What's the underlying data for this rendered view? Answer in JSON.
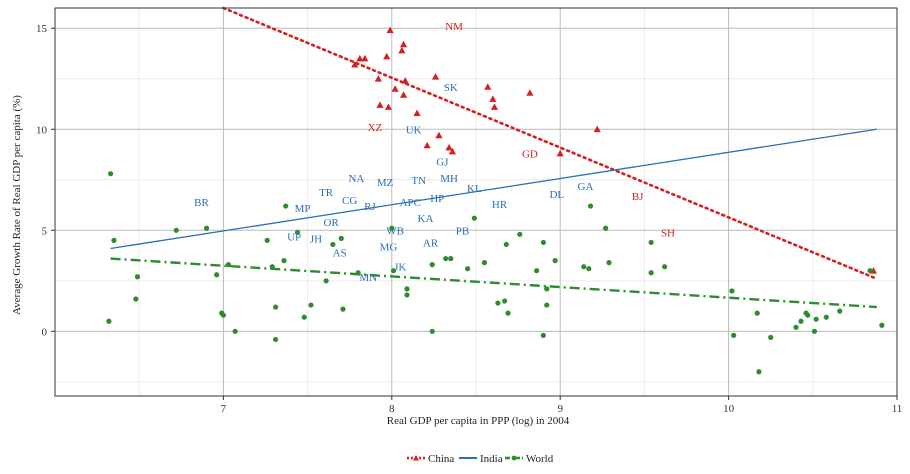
{
  "chart_data": {
    "type": "scatter",
    "xlabel": "Real GDP per capita in PPP (log) in 2004",
    "ylabel": "Average Growth Rate of Real GDP per capita (%)",
    "xlim": [
      6.0,
      11.0
    ],
    "ylim": [
      -3.2,
      16.0
    ],
    "x_ticks": [
      7,
      8,
      9,
      10,
      11
    ],
    "y_ticks": [
      0,
      5,
      10,
      15
    ],
    "grid": true,
    "legend_position": "bottom",
    "series": [
      {
        "name": "China",
        "color": "#d62020",
        "marker": "triangle",
        "points": [
          [
            7.78,
            13.2
          ],
          [
            7.81,
            13.5
          ],
          [
            7.84,
            13.5
          ],
          [
            7.92,
            12.5
          ],
          [
            7.97,
            13.6
          ],
          [
            7.99,
            14.9
          ],
          [
            8.06,
            13.9
          ],
          [
            8.07,
            14.2
          ],
          [
            8.08,
            12.4
          ],
          [
            8.07,
            11.7
          ],
          [
            8.02,
            12.0
          ],
          [
            8.26,
            12.6
          ],
          [
            8.15,
            10.8
          ],
          [
            7.93,
            11.2
          ],
          [
            7.98,
            11.1
          ],
          [
            8.21,
            9.2
          ],
          [
            8.28,
            9.7
          ],
          [
            8.34,
            9.1
          ],
          [
            8.36,
            8.9
          ],
          [
            8.57,
            12.1
          ],
          [
            8.6,
            11.5
          ],
          [
            8.61,
            11.1
          ],
          [
            8.82,
            11.8
          ],
          [
            9.0,
            8.8
          ],
          [
            9.22,
            10.0
          ],
          [
            10.86,
            3.0
          ]
        ],
        "labels": [
          {
            "text": "NM",
            "x": 8.37,
            "y": 15.1
          },
          {
            "text": "XZ",
            "x": 7.9,
            "y": 10.1
          },
          {
            "text": "GD",
            "x": 8.82,
            "y": 8.8
          },
          {
            "text": "BJ",
            "x": 9.46,
            "y": 6.7
          },
          {
            "text": "SH",
            "x": 9.64,
            "y": 4.9
          }
        ]
      },
      {
        "name": "India",
        "color": "#2a6fb3",
        "marker": "none",
        "labels": [
          {
            "text": "SK",
            "x": 8.35,
            "y": 12.1
          },
          {
            "text": "UK",
            "x": 8.13,
            "y": 10.0
          },
          {
            "text": "GJ",
            "x": 8.3,
            "y": 8.4
          },
          {
            "text": "NA",
            "x": 7.79,
            "y": 7.6
          },
          {
            "text": "MZ",
            "x": 7.96,
            "y": 7.4
          },
          {
            "text": "TN",
            "x": 8.16,
            "y": 7.5
          },
          {
            "text": "MH",
            "x": 8.34,
            "y": 7.6
          },
          {
            "text": "KL",
            "x": 8.49,
            "y": 7.1
          },
          {
            "text": "GA",
            "x": 9.15,
            "y": 7.2
          },
          {
            "text": "DL",
            "x": 8.98,
            "y": 6.8
          },
          {
            "text": "HR",
            "x": 8.64,
            "y": 6.3
          },
          {
            "text": "TR",
            "x": 7.61,
            "y": 6.9
          },
          {
            "text": "CG",
            "x": 7.75,
            "y": 6.5
          },
          {
            "text": "RJ",
            "x": 7.87,
            "y": 6.2
          },
          {
            "text": "APC",
            "x": 8.11,
            "y": 6.4
          },
          {
            "text": "HP",
            "x": 8.27,
            "y": 6.6
          },
          {
            "text": "BR",
            "x": 6.87,
            "y": 6.4
          },
          {
            "text": "MP",
            "x": 7.47,
            "y": 6.1
          },
          {
            "text": "KA",
            "x": 8.2,
            "y": 5.6
          },
          {
            "text": "OR",
            "x": 7.64,
            "y": 5.4
          },
          {
            "text": "PB",
            "x": 8.42,
            "y": 5.0
          },
          {
            "text": "WB",
            "x": 8.02,
            "y": 5.0
          },
          {
            "text": "UP",
            "x": 7.42,
            "y": 4.7
          },
          {
            "text": "JH",
            "x": 7.55,
            "y": 4.6
          },
          {
            "text": "AR",
            "x": 8.23,
            "y": 4.4
          },
          {
            "text": "MG",
            "x": 7.98,
            "y": 4.2
          },
          {
            "text": "AS",
            "x": 7.69,
            "y": 3.9
          },
          {
            "text": "JK",
            "x": 8.05,
            "y": 3.2
          },
          {
            "text": "MN",
            "x": 7.86,
            "y": 2.7
          }
        ]
      },
      {
        "name": "World",
        "color": "#2e8b2e",
        "marker": "circle",
        "points": [
          [
            6.33,
            7.8
          ],
          [
            6.35,
            4.5
          ],
          [
            6.32,
            0.5
          ],
          [
            6.49,
            2.7
          ],
          [
            6.48,
            1.6
          ],
          [
            6.72,
            5.0
          ],
          [
            6.9,
            5.1
          ],
          [
            6.96,
            2.8
          ],
          [
            6.99,
            0.9
          ],
          [
            7.0,
            0.8
          ],
          [
            7.03,
            3.3
          ],
          [
            7.07,
            0.0
          ],
          [
            7.26,
            4.5
          ],
          [
            7.29,
            3.2
          ],
          [
            7.31,
            1.2
          ],
          [
            7.31,
            -0.4
          ],
          [
            7.36,
            3.5
          ],
          [
            7.37,
            6.2
          ],
          [
            7.44,
            4.9
          ],
          [
            7.48,
            0.7
          ],
          [
            7.52,
            1.3
          ],
          [
            7.61,
            2.5
          ],
          [
            7.65,
            4.3
          ],
          [
            7.7,
            4.6
          ],
          [
            7.71,
            1.1
          ],
          [
            7.8,
            2.9
          ],
          [
            8.0,
            5.1
          ],
          [
            8.01,
            3.0
          ],
          [
            8.09,
            2.1
          ],
          [
            8.09,
            1.8
          ],
          [
            8.24,
            3.3
          ],
          [
            8.24,
            0.0
          ],
          [
            8.32,
            3.6
          ],
          [
            8.35,
            3.6
          ],
          [
            8.45,
            3.1
          ],
          [
            8.49,
            5.6
          ],
          [
            8.55,
            3.4
          ],
          [
            8.63,
            1.4
          ],
          [
            8.67,
            1.5
          ],
          [
            8.68,
            4.3
          ],
          [
            8.69,
            0.9
          ],
          [
            8.76,
            4.8
          ],
          [
            8.86,
            3.0
          ],
          [
            8.9,
            4.4
          ],
          [
            8.9,
            -0.2
          ],
          [
            8.92,
            2.1
          ],
          [
            8.92,
            1.3
          ],
          [
            8.97,
            3.5
          ],
          [
            9.14,
            3.2
          ],
          [
            9.17,
            3.1
          ],
          [
            9.18,
            6.2
          ],
          [
            9.27,
            5.1
          ],
          [
            9.29,
            3.4
          ],
          [
            9.54,
            4.4
          ],
          [
            9.54,
            2.9
          ],
          [
            9.62,
            3.2
          ],
          [
            10.02,
            2.0
          ],
          [
            10.03,
            -0.2
          ],
          [
            10.17,
            0.9
          ],
          [
            10.18,
            -2.0
          ],
          [
            10.25,
            -0.3
          ],
          [
            10.4,
            0.2
          ],
          [
            10.43,
            0.5
          ],
          [
            10.46,
            0.9
          ],
          [
            10.47,
            0.8
          ],
          [
            10.51,
            0.0
          ],
          [
            10.52,
            0.6
          ],
          [
            10.58,
            0.7
          ],
          [
            10.66,
            1.0
          ],
          [
            10.84,
            3.0
          ],
          [
            10.91,
            0.3
          ]
        ]
      }
    ],
    "fit_lines": [
      {
        "series": "China",
        "style": "dotted",
        "color": "#d62020",
        "from": [
          7.0,
          16.0
        ],
        "to": [
          10.88,
          2.6
        ]
      },
      {
        "series": "India",
        "style": "solid",
        "color": "#2a6fb3",
        "from": [
          6.33,
          4.1
        ],
        "to": [
          10.88,
          10.0
        ]
      },
      {
        "series": "World",
        "style": "dashdot",
        "color": "#2e8b2e",
        "from": [
          6.33,
          3.6
        ],
        "to": [
          10.88,
          1.2
        ]
      }
    ]
  }
}
